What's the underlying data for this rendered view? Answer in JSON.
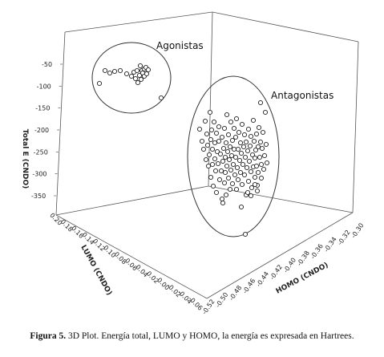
{
  "chart_data": {
    "type": "scatter",
    "title": "",
    "axes": {
      "z": {
        "label": "Total E (CNDO)",
        "ticks": [
          "-50",
          "-100",
          "-150",
          "-200",
          "-250",
          "-300",
          "-350"
        ]
      },
      "lumo": {
        "label": "LUMO (CNDO)",
        "ticks": [
          "0.20",
          "0.18",
          "0.16",
          "0.14",
          "0.12",
          "0.10",
          "0.08",
          "0.06",
          "0.04",
          "0.02",
          "0.00",
          "-0.02",
          "-0.04",
          "-0.06"
        ]
      },
      "homo": {
        "label": "HOMO (CNDO)",
        "ticks": [
          "-0.52",
          "-0.50",
          "-0.48",
          "-0.46",
          "-0.44",
          "-0.42",
          "-0.40",
          "-0.38",
          "-0.36",
          "-0.34",
          "-0.32",
          "-0.30"
        ]
      }
    },
    "groups": [
      {
        "name": "Agonistas",
        "points": [
          [
            124,
            104
          ],
          [
            131,
            88
          ],
          [
            137,
            91
          ],
          [
            143,
            89
          ],
          [
            150,
            88
          ],
          [
            158,
            92
          ],
          [
            164,
            95
          ],
          [
            167,
            90
          ],
          [
            169,
            98
          ],
          [
            171,
            88
          ],
          [
            172,
            103
          ],
          [
            174,
            94
          ],
          [
            175,
            82
          ],
          [
            176,
            99
          ],
          [
            177,
            88
          ],
          [
            178,
            91
          ],
          [
            180,
            95
          ],
          [
            180,
            86
          ],
          [
            182,
            84
          ],
          [
            183,
            92
          ],
          [
            185,
            87
          ],
          [
            201,
            122
          ]
        ]
      },
      {
        "name": "Antagonistas",
        "points": [
          [
            249,
            161
          ],
          [
            252,
            176
          ],
          [
            254,
            186
          ],
          [
            256,
            151
          ],
          [
            257,
            199
          ],
          [
            258,
            167
          ],
          [
            259,
            181
          ],
          [
            260,
            207
          ],
          [
            261,
            193
          ],
          [
            262,
            140
          ],
          [
            263,
            174
          ],
          [
            263,
            221
          ],
          [
            264,
            162
          ],
          [
            265,
            186
          ],
          [
            265,
            205
          ],
          [
            266,
            232
          ],
          [
            267,
            152
          ],
          [
            268,
            198
          ],
          [
            268,
            178
          ],
          [
            269,
            213
          ],
          [
            270,
            166
          ],
          [
            270,
            240
          ],
          [
            271,
            189
          ],
          [
            272,
            204
          ],
          [
            273,
            176
          ],
          [
            273,
            158
          ],
          [
            274,
            224
          ],
          [
            275,
            192
          ],
          [
            276,
            213
          ],
          [
            277,
            171
          ],
          [
            277,
            248
          ],
          [
            278,
            201
          ],
          [
            279,
            185
          ],
          [
            280,
            160
          ],
          [
            280,
            228
          ],
          [
            281,
            196
          ],
          [
            281,
            215
          ],
          [
            282,
            178
          ],
          [
            283,
            143
          ],
          [
            283,
            207
          ],
          [
            284,
            189
          ],
          [
            285,
            222
          ],
          [
            285,
            168
          ],
          [
            286,
            199
          ],
          [
            287,
            183
          ],
          [
            287,
            236
          ],
          [
            288,
            152
          ],
          [
            288,
            212
          ],
          [
            289,
            194
          ],
          [
            290,
            175
          ],
          [
            290,
            229
          ],
          [
            291,
            205
          ],
          [
            292,
            186
          ],
          [
            292,
            160
          ],
          [
            293,
            218
          ],
          [
            294,
            196
          ],
          [
            294,
            171
          ],
          [
            295,
            236
          ],
          [
            295,
            148
          ],
          [
            296,
            209
          ],
          [
            297,
            186
          ],
          [
            297,
            224
          ],
          [
            298,
            165
          ],
          [
            299,
            200
          ],
          [
            300,
            178
          ],
          [
            300,
            215
          ],
          [
            301,
            191
          ],
          [
            302,
            155
          ],
          [
            302,
            230
          ],
          [
            303,
            205
          ],
          [
            304,
            183
          ],
          [
            305,
            168
          ],
          [
            305,
            218
          ],
          [
            306,
            196
          ],
          [
            307,
            177
          ],
          [
            307,
            243
          ],
          [
            308,
            209
          ],
          [
            309,
            188
          ],
          [
            310,
            161
          ],
          [
            310,
            226
          ],
          [
            311,
            201
          ],
          [
            312,
            182
          ],
          [
            313,
            214
          ],
          [
            313,
            170
          ],
          [
            314,
            234
          ],
          [
            315,
            193
          ],
          [
            316,
            208
          ],
          [
            316,
            150
          ],
          [
            317,
            176
          ],
          [
            318,
            221
          ],
          [
            318,
            197
          ],
          [
            319,
            187
          ],
          [
            320,
            167
          ],
          [
            320,
            207
          ],
          [
            321,
            231
          ],
          [
            322,
            183
          ],
          [
            322,
            215
          ],
          [
            323,
            159
          ],
          [
            324,
            196
          ],
          [
            325,
            128
          ],
          [
            325,
            177
          ],
          [
            326,
            205
          ],
          [
            326,
            222
          ],
          [
            327,
            185
          ],
          [
            328,
            165
          ],
          [
            329,
            211
          ],
          [
            330,
            194
          ],
          [
            331,
            140
          ],
          [
            332,
            180
          ],
          [
            333,
            203
          ],
          [
            278,
            253
          ],
          [
            282,
            243
          ],
          [
            301,
            258
          ],
          [
            306,
            292
          ],
          [
            309,
            240
          ],
          [
            313,
            244
          ],
          [
            318,
            230
          ],
          [
            321,
            238
          ]
        ]
      }
    ],
    "groups_note_units": "point positions given on the projected 3D plot surface"
  },
  "labels": {
    "agonistas": "Agonistas",
    "antagonistas": "Antagonistas"
  },
  "caption": {
    "prefix": "Figura 5.",
    "text": " 3D Plot. Energía total, LUMO y HOMO, la energía es expresada en Hartrees."
  }
}
